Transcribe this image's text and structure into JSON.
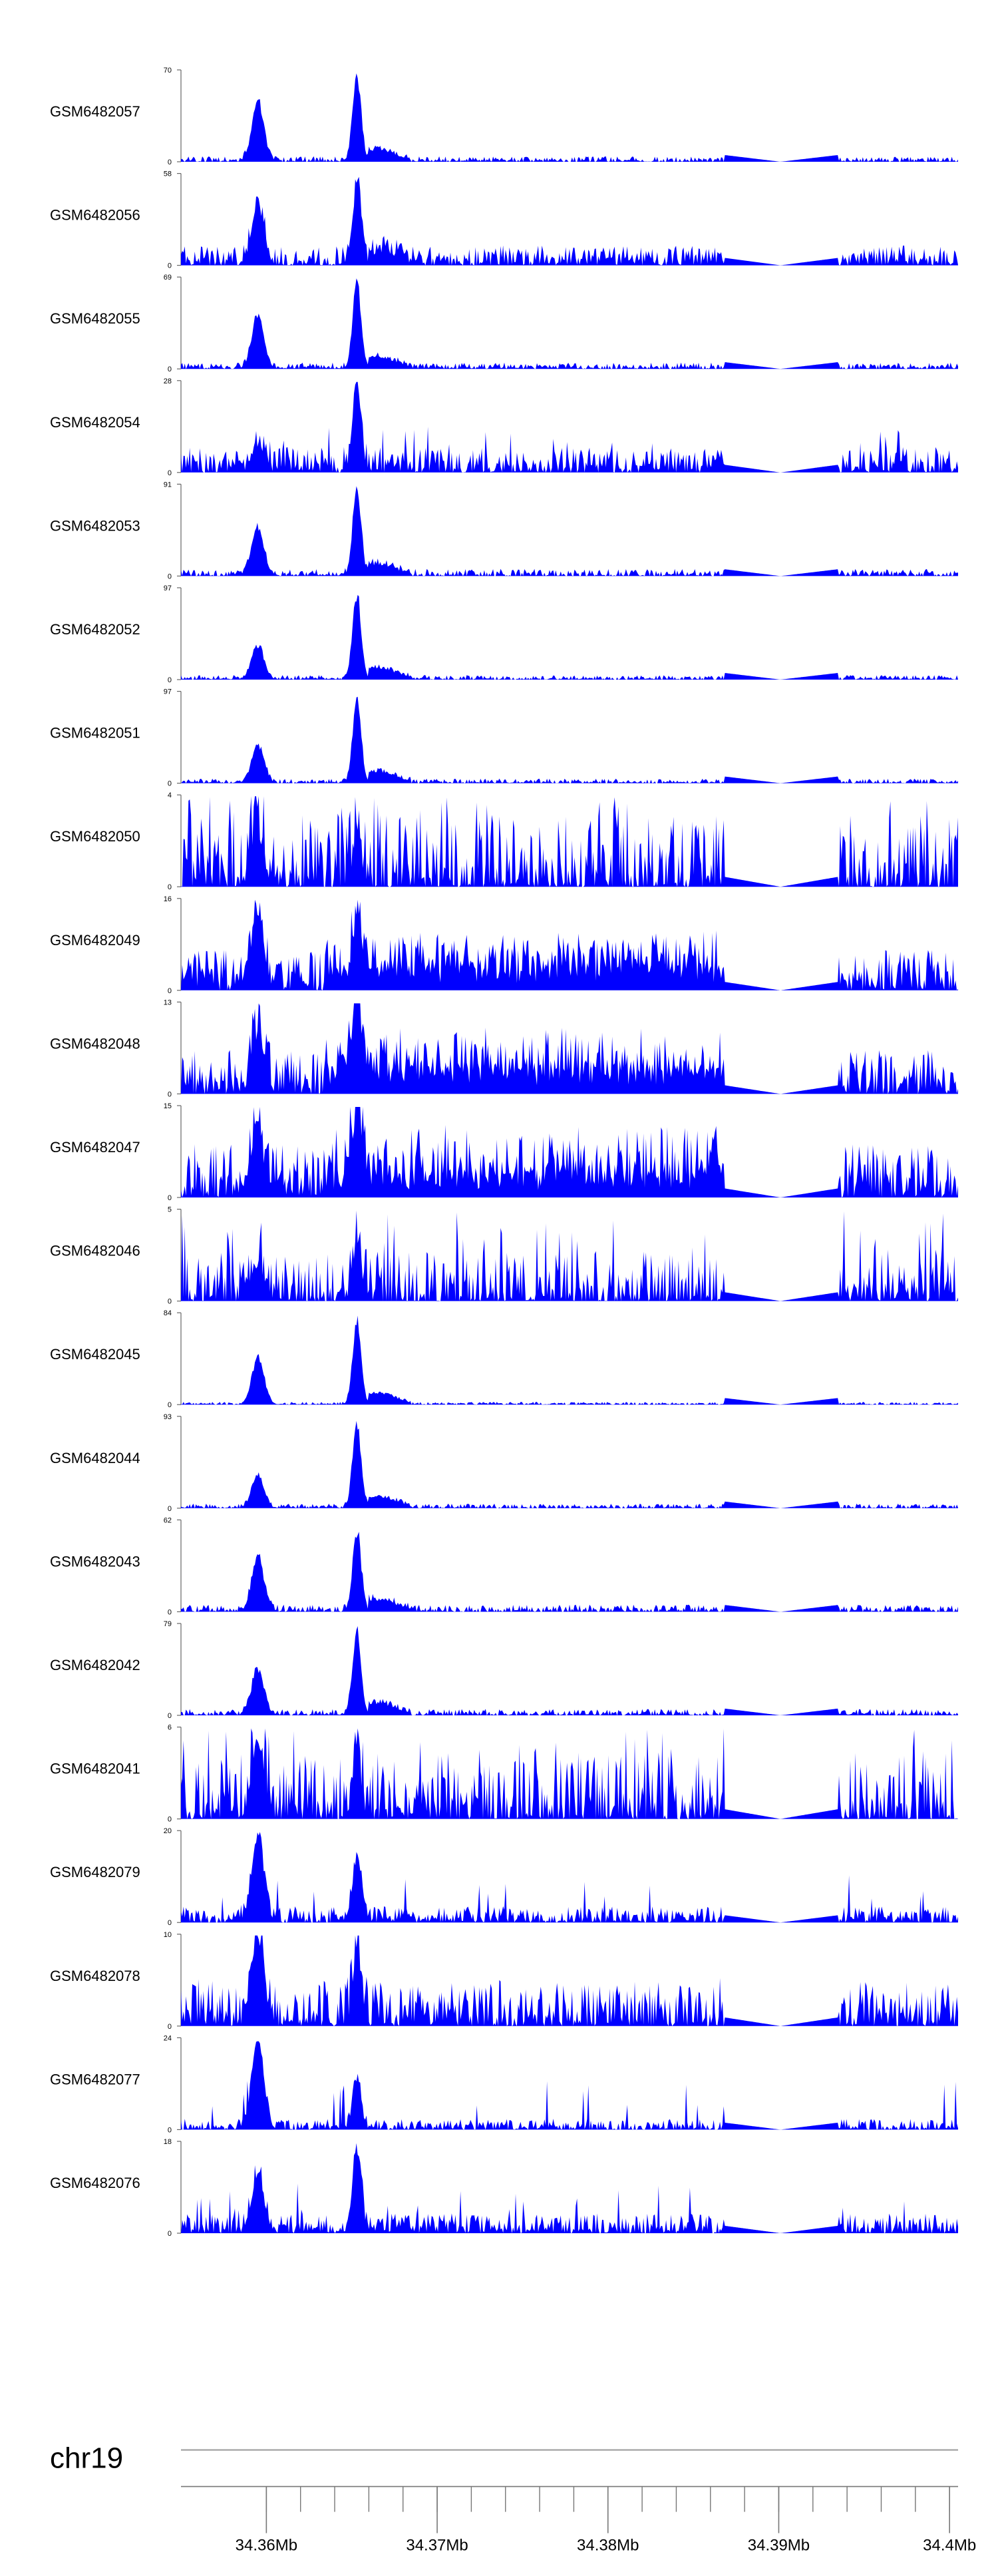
{
  "chart_data": {
    "type": "area",
    "chromosome": "chr19",
    "x_range_mb": [
      34.355,
      34.4005
    ],
    "x_ticks": [
      {
        "mb": 34.36,
        "label": "34.36Mb"
      },
      {
        "mb": 34.37,
        "label": "34.37Mb"
      },
      {
        "mb": 34.38,
        "label": "34.38Mb"
      },
      {
        "mb": 34.39,
        "label": "34.39Mb"
      },
      {
        "mb": 34.4,
        "label": "34.4Mb"
      }
    ],
    "minor_tick_step_mb": 0.002,
    "gap_mb": [
      34.3868,
      34.3935
    ],
    "gap_valley_mb": 34.3901,
    "color": "#0000ff",
    "tracks": [
      {
        "name": "GSM6482057",
        "ymax": 70,
        "ymax_label": "70",
        "ymin_label": "0",
        "profile": "peaks",
        "noise": 0.06,
        "p1": 0.68,
        "p2": 1.0
      },
      {
        "name": "GSM6482056",
        "ymax": 58,
        "ymax_label": "58",
        "ymin_label": "0",
        "profile": "peaks",
        "noise": 0.22,
        "p1": 0.7,
        "p2": 0.95
      },
      {
        "name": "GSM6482055",
        "ymax": 69,
        "ymax_label": "69",
        "ymin_label": "0",
        "profile": "peaks",
        "noise": 0.07,
        "p1": 0.62,
        "p2": 1.0
      },
      {
        "name": "GSM6482054",
        "ymax": 28,
        "ymax_label": "28",
        "ymin_label": "0",
        "profile": "mixed",
        "noise": 0.28,
        "p1": 0.3,
        "p2": 1.0
      },
      {
        "name": "GSM6482053",
        "ymax": 91,
        "ymax_label": "91",
        "ymin_label": "0",
        "profile": "peaks",
        "noise": 0.08,
        "p1": 0.55,
        "p2": 1.0
      },
      {
        "name": "GSM6482052",
        "ymax": 97,
        "ymax_label": "97",
        "ymin_label": "0",
        "profile": "peaks",
        "noise": 0.05,
        "p1": 0.4,
        "p2": 1.0
      },
      {
        "name": "GSM6482051",
        "ymax": 97,
        "ymax_label": "97",
        "ymin_label": "0",
        "profile": "peaks",
        "noise": 0.05,
        "p1": 0.45,
        "p2": 1.0
      },
      {
        "name": "GSM6482050",
        "ymax": 4,
        "ymax_label": "4",
        "ymin_label": "0",
        "profile": "spiky",
        "noise": 0.8,
        "p1": 0.6,
        "p2": 0.55
      },
      {
        "name": "GSM6482049",
        "ymax": 16,
        "ymax_label": "16",
        "ymin_label": "0",
        "profile": "broad",
        "noise": 0.45,
        "p1": 0.85,
        "p2": 0.55
      },
      {
        "name": "GSM6482048",
        "ymax": 13,
        "ymax_label": "13",
        "ymin_label": "0",
        "profile": "broad",
        "noise": 0.5,
        "p1": 0.7,
        "p2": 0.95
      },
      {
        "name": "GSM6482047",
        "ymax": 15,
        "ymax_label": "15",
        "ymin_label": "0",
        "profile": "broad",
        "noise": 0.6,
        "p1": 0.6,
        "p2": 0.85
      },
      {
        "name": "GSM6482046",
        "ymax": 5,
        "ymax_label": "5",
        "ymin_label": "0",
        "profile": "spiky",
        "noise": 0.55,
        "p1": 0.4,
        "p2": 0.65
      },
      {
        "name": "GSM6482045",
        "ymax": 84,
        "ymax_label": "84",
        "ymin_label": "0",
        "profile": "peaks",
        "noise": 0.03,
        "p1": 0.55,
        "p2": 1.0
      },
      {
        "name": "GSM6482044",
        "ymax": 93,
        "ymax_label": "93",
        "ymin_label": "0",
        "profile": "peaks",
        "noise": 0.05,
        "p1": 0.38,
        "p2": 1.0
      },
      {
        "name": "GSM6482043",
        "ymax": 62,
        "ymax_label": "62",
        "ymin_label": "0",
        "profile": "peaks",
        "noise": 0.08,
        "p1": 0.62,
        "p2": 0.95
      },
      {
        "name": "GSM6482042",
        "ymax": 79,
        "ymax_label": "79",
        "ymin_label": "0",
        "profile": "peaks",
        "noise": 0.07,
        "p1": 0.55,
        "p2": 1.0
      },
      {
        "name": "GSM6482041",
        "ymax": 6,
        "ymax_label": "6",
        "ymin_label": "0",
        "profile": "spiky",
        "noise": 0.75,
        "p1": 0.95,
        "p2": 0.7
      },
      {
        "name": "GSM6482079",
        "ymax": 20,
        "ymax_label": "20",
        "ymin_label": "0",
        "profile": "mixed",
        "noise": 0.18,
        "p1": 1.0,
        "p2": 0.78
      },
      {
        "name": "GSM6482078",
        "ymax": 10,
        "ymax_label": "10",
        "ymin_label": "0",
        "profile": "mixed",
        "noise": 0.5,
        "p1": 1.0,
        "p2": 0.8
      },
      {
        "name": "GSM6482077",
        "ymax": 24,
        "ymax_label": "24",
        "ymin_label": "0",
        "profile": "mixed",
        "noise": 0.12,
        "p1": 1.0,
        "p2": 0.6
      },
      {
        "name": "GSM6482076",
        "ymax": 18,
        "ymax_label": "18",
        "ymin_label": "0",
        "profile": "mixed",
        "noise": 0.22,
        "p1": 0.65,
        "p2": 1.0
      }
    ]
  }
}
